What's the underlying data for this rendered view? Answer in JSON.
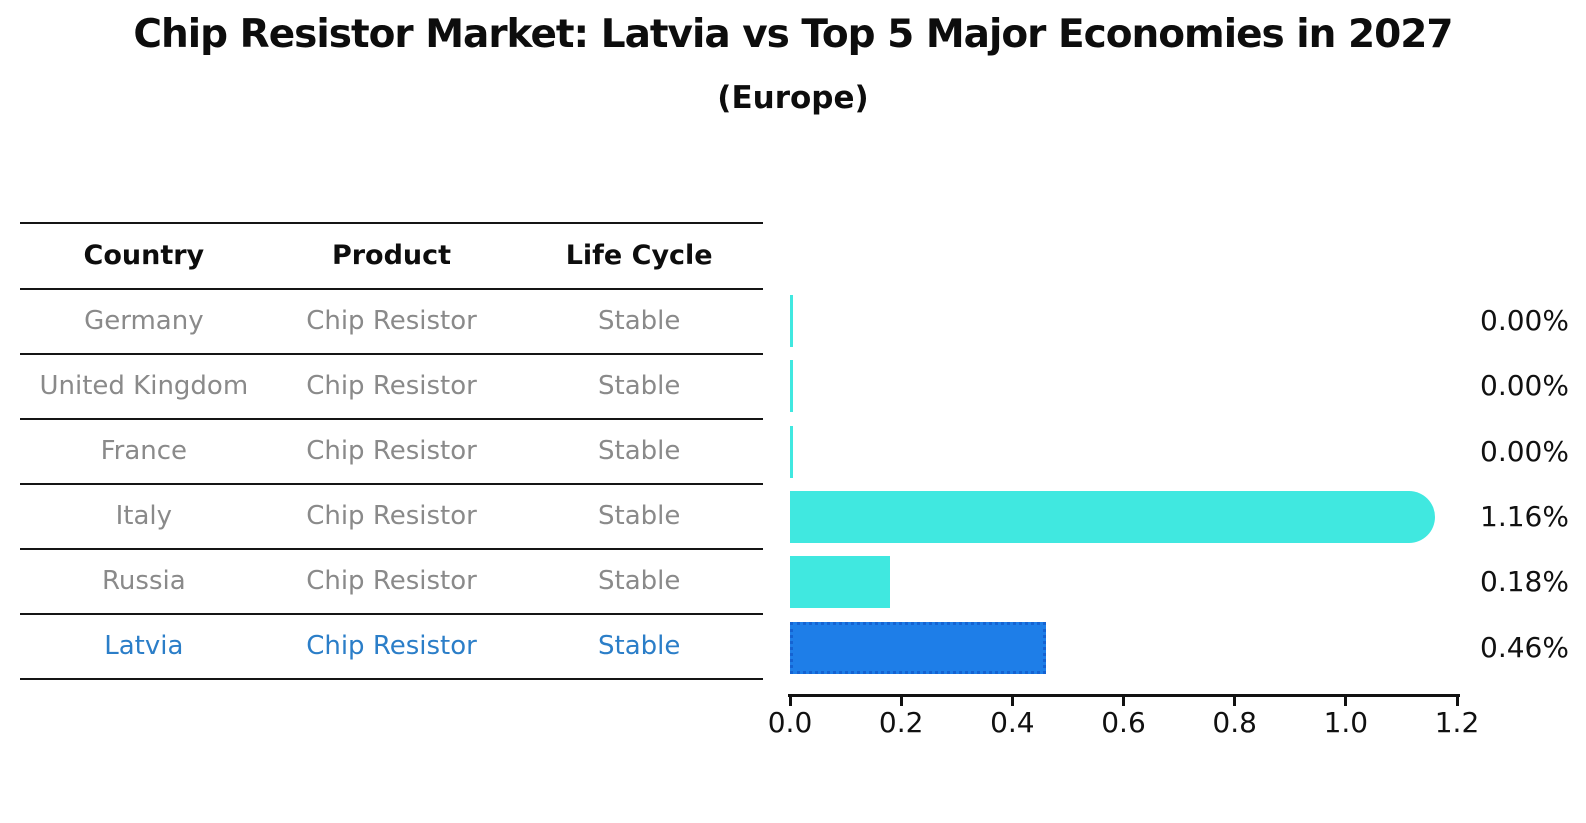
{
  "title": "Chip Resistor Market: Latvia vs Top 5 Major Economies in 2027",
  "subtitle": "(Europe)",
  "table": {
    "headers": [
      "Country",
      "Product",
      "Life Cycle"
    ]
  },
  "chart_data": {
    "type": "bar",
    "orientation": "horizontal",
    "title": "Chip Resistor Market: Latvia vs Top 5 Major Economies in 2027",
    "subtitle": "(Europe)",
    "xlim": [
      0.0,
      1.2
    ],
    "x_ticks": [
      "0.0",
      "0.2",
      "0.4",
      "0.6",
      "0.8",
      "1.0",
      "1.2"
    ],
    "grid": false,
    "legend": "none",
    "highlight_category": "Latvia",
    "rows": [
      {
        "country": "Germany",
        "product": "Chip Resistor",
        "life_cycle": "Stable",
        "value": 0.0,
        "value_label": "0.00%",
        "highlight": false,
        "cap": "square"
      },
      {
        "country": "United Kingdom",
        "product": "Chip Resistor",
        "life_cycle": "Stable",
        "value": 0.0,
        "value_label": "0.00%",
        "highlight": false,
        "cap": "square"
      },
      {
        "country": "France",
        "product": "Chip Resistor",
        "life_cycle": "Stable",
        "value": 0.0,
        "value_label": "0.00%",
        "highlight": false,
        "cap": "square"
      },
      {
        "country": "Italy",
        "product": "Chip Resistor",
        "life_cycle": "Stable",
        "value": 1.16,
        "value_label": "1.16%",
        "highlight": false,
        "cap": "round"
      },
      {
        "country": "Russia",
        "product": "Chip Resistor",
        "life_cycle": "Stable",
        "value": 0.18,
        "value_label": "0.18%",
        "highlight": false,
        "cap": "square"
      },
      {
        "country": "Latvia",
        "product": "Chip Resistor",
        "life_cycle": "Stable",
        "value": 0.46,
        "value_label": "0.46%",
        "highlight": true,
        "cap": "square"
      }
    ],
    "colors": {
      "bar_default": "#40e8e0",
      "bar_highlight": "#1e7ee8",
      "bar_highlight_border": "#1563d2",
      "highlight_text": "#2b7ec8",
      "table_text": "#8a8a8a",
      "header_text": "#0d0d0d",
      "label_text": "#111111"
    }
  }
}
